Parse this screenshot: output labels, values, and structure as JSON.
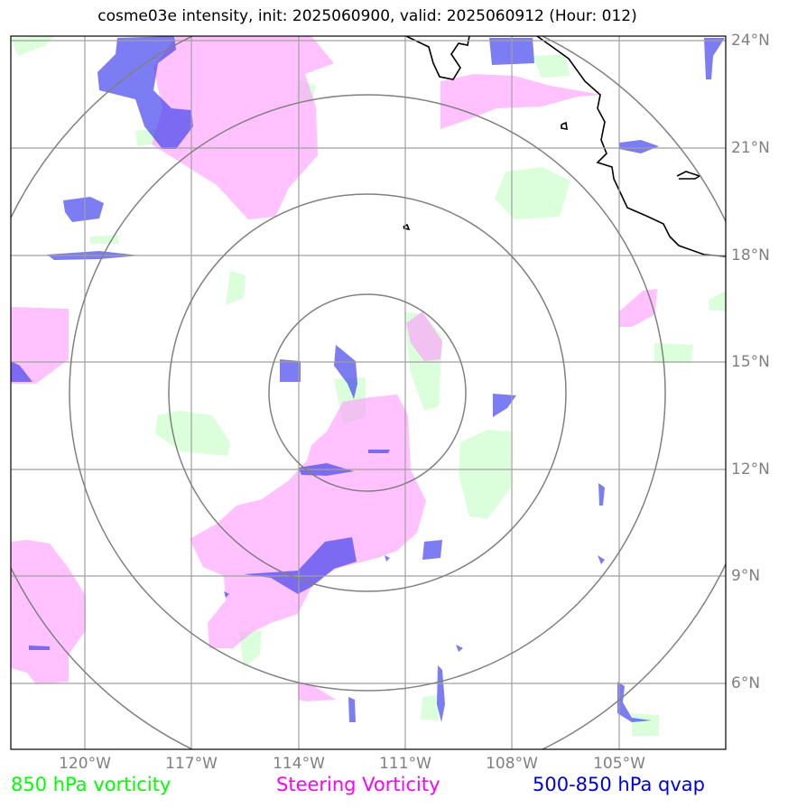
{
  "title": "cosme03e intensity, init: 2025060900, valid: 2025060912 (Hour: 012)",
  "map": {
    "lon_labels": [
      "120°W",
      "117°W",
      "114°W",
      "111°W",
      "108°W",
      "105°W"
    ],
    "lat_labels": [
      "24°N",
      "21°N",
      "18°N",
      "15°N",
      "12°N",
      "9°N",
      "6°N"
    ]
  },
  "legend": {
    "vort850": {
      "label": "850 hPa vorticity",
      "color": "#00ff00"
    },
    "steering": {
      "label": "Steering Vorticity",
      "color": "#ff00ff"
    },
    "qvap": {
      "label": "500-850 hPa qvap",
      "color": "#0000dd"
    }
  }
}
